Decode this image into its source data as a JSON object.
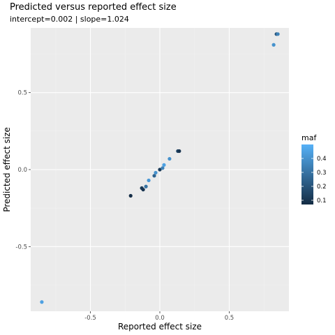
{
  "chart_data": {
    "type": "scatter",
    "title": "Predicted versus reported effect size",
    "subtitle": "intercept=0.002 | slope=1.024",
    "xlabel": "Reported effect size",
    "ylabel": "Predicted effect size",
    "xlim": [
      -0.93,
      0.93
    ],
    "ylim": [
      -0.92,
      0.92
    ],
    "x_ticks": [
      -0.5,
      0.0,
      0.5
    ],
    "x_tick_labels": [
      "-0.5",
      "0.0",
      "0.5"
    ],
    "y_ticks": [
      -0.5,
      0.0,
      0.5
    ],
    "y_tick_labels": [
      "-0.5",
      "0.0",
      "0.5"
    ],
    "grid": true,
    "background": "#ebebeb",
    "legend": {
      "title": "maf",
      "placement": "right",
      "type": "colorbar",
      "range": [
        0.07,
        0.5
      ],
      "ticks": [
        0.1,
        0.2,
        0.3,
        0.4
      ],
      "tick_labels": [
        "0.1",
        "0.2",
        "0.3",
        "0.4"
      ],
      "low_color": "#132b43",
      "high_color": "#56b1f7"
    },
    "points": [
      {
        "x": -0.85,
        "y": -0.86,
        "maf": 0.45
      },
      {
        "x": -0.21,
        "y": -0.17,
        "maf": 0.08
      },
      {
        "x": -0.13,
        "y": -0.12,
        "maf": 0.12
      },
      {
        "x": -0.12,
        "y": -0.13,
        "maf": 0.1
      },
      {
        "x": -0.1,
        "y": -0.11,
        "maf": 0.3
      },
      {
        "x": -0.08,
        "y": -0.07,
        "maf": 0.42
      },
      {
        "x": -0.04,
        "y": -0.04,
        "maf": 0.25
      },
      {
        "x": -0.03,
        "y": -0.02,
        "maf": 0.4
      },
      {
        "x": 0.0,
        "y": 0.0,
        "maf": 0.12
      },
      {
        "x": 0.02,
        "y": 0.01,
        "maf": 0.35
      },
      {
        "x": 0.03,
        "y": 0.03,
        "maf": 0.45
      },
      {
        "x": 0.07,
        "y": 0.07,
        "maf": 0.4
      },
      {
        "x": 0.13,
        "y": 0.12,
        "maf": 0.15
      },
      {
        "x": 0.14,
        "y": 0.12,
        "maf": 0.1
      },
      {
        "x": 0.82,
        "y": 0.81,
        "maf": 0.4
      },
      {
        "x": 0.84,
        "y": 0.88,
        "maf": 0.2
      },
      {
        "x": 0.85,
        "y": 0.88,
        "maf": 0.35
      }
    ]
  }
}
